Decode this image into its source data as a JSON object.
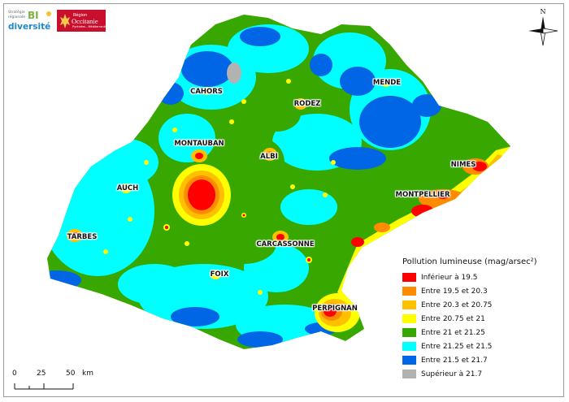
{
  "map": {
    "cities": [
      {
        "id": "cahors",
        "label": "CAHORS"
      },
      {
        "id": "rodez",
        "label": "RODEZ"
      },
      {
        "id": "mende",
        "label": "MENDE"
      },
      {
        "id": "montauban",
        "label": "MONTAUBAN"
      },
      {
        "id": "albi",
        "label": "ALBI"
      },
      {
        "id": "nimes",
        "label": "NIMES"
      },
      {
        "id": "auch",
        "label": "AUCH"
      },
      {
        "id": "montpellier",
        "label": "MONTPELLIER"
      },
      {
        "id": "tarbes",
        "label": "TARBES"
      },
      {
        "id": "carcassonne",
        "label": "CARCASSONNE"
      },
      {
        "id": "foix",
        "label": "FOIX"
      },
      {
        "id": "perpignan",
        "label": "PERPIGNAN"
      }
    ]
  },
  "legend": {
    "title": "Pollution lumineuse (mag/arsec²)",
    "items": [
      {
        "label": "Inférieur à 19.5",
        "color": "#ff0000"
      },
      {
        "label": "Entre 19.5 et 20.3",
        "color": "#ff8c00"
      },
      {
        "label": "Entre 20.3 et 20.75",
        "color": "#ffc000"
      },
      {
        "label": "Entre 20.75 et 21",
        "color": "#ffff00"
      },
      {
        "label": "Entre 21 et 21.25",
        "color": "#38a800"
      },
      {
        "label": "Entre 21.25 et 21.5",
        "color": "#00ffff"
      },
      {
        "label": "Entre 21.5 et 21.7",
        "color": "#0066e6"
      },
      {
        "label": "Supérieur à 21.7",
        "color": "#b2b2b2"
      }
    ]
  },
  "scale": {
    "ticks": [
      "0",
      "25",
      "50"
    ],
    "unit": "km"
  },
  "north": {
    "label": "N"
  },
  "logos": {
    "biodiv_top": "Stratégie",
    "biodiv_sub": "régionale",
    "biodiv_bi": "BI",
    "biodiv_main": "diversité",
    "region_small": "Région",
    "region_main": "Occitanie",
    "region_sub": "Pyrénées - Méditerranée"
  },
  "colors": {
    "red": "#ff0000",
    "orange": "#ff8c00",
    "amber": "#ffc000",
    "yellow": "#ffff00",
    "green": "#38a800",
    "cyan": "#00ffff",
    "blue": "#0066e6",
    "grey": "#b2b2b2"
  }
}
